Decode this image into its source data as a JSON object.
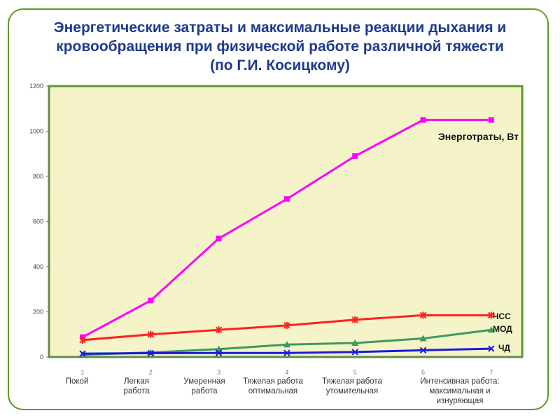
{
  "title": {
    "line1": "Энергетические затраты и максимальные реакции дыхания и",
    "line2": "кровообращения при физической работе различной тяжести",
    "line3": "(по Г.И. Косицкому)"
  },
  "chart_data": {
    "type": "line",
    "x": [
      1,
      2,
      3,
      4,
      5,
      6,
      7
    ],
    "x_tick_labels": [
      "1",
      "2",
      "3",
      "4",
      "5",
      "6",
      "7"
    ],
    "categories": [
      [
        "Покой"
      ],
      [
        "Легкая",
        "работа"
      ],
      [
        "Умеренная",
        "работа"
      ],
      [
        "Тяжелая работа",
        "оптимальная"
      ],
      [
        "Тяжелая работа",
        "утомительная"
      ],
      [
        "Интенсивная работа:",
        "максимальная и",
        "изнуряющая"
      ]
    ],
    "ylim": [
      0,
      1200
    ],
    "yticks": [
      "0",
      "200",
      "400",
      "600",
      "800",
      "1000",
      "1200"
    ],
    "grid": false,
    "plot_background": "#f4f4c8",
    "series": [
      {
        "name": "Энерготраты, Вт",
        "color": "#ff00ff",
        "marker": "square",
        "values": [
          88,
          250,
          525,
          700,
          890,
          1050,
          1050
        ]
      },
      {
        "name": "ЧСС",
        "color": "#ff2020",
        "marker": "asterisk",
        "values": [
          75,
          100,
          120,
          140,
          165,
          185,
          185
        ]
      },
      {
        "name": "МОД",
        "color": "#3c9a5f",
        "marker": "triangle",
        "values": [
          10,
          20,
          35,
          55,
          62,
          82,
          120
        ]
      },
      {
        "name": "ЧД",
        "color": "#1a1ae0",
        "marker": "x",
        "values": [
          15,
          17,
          18,
          18,
          22,
          30,
          37
        ]
      }
    ]
  }
}
